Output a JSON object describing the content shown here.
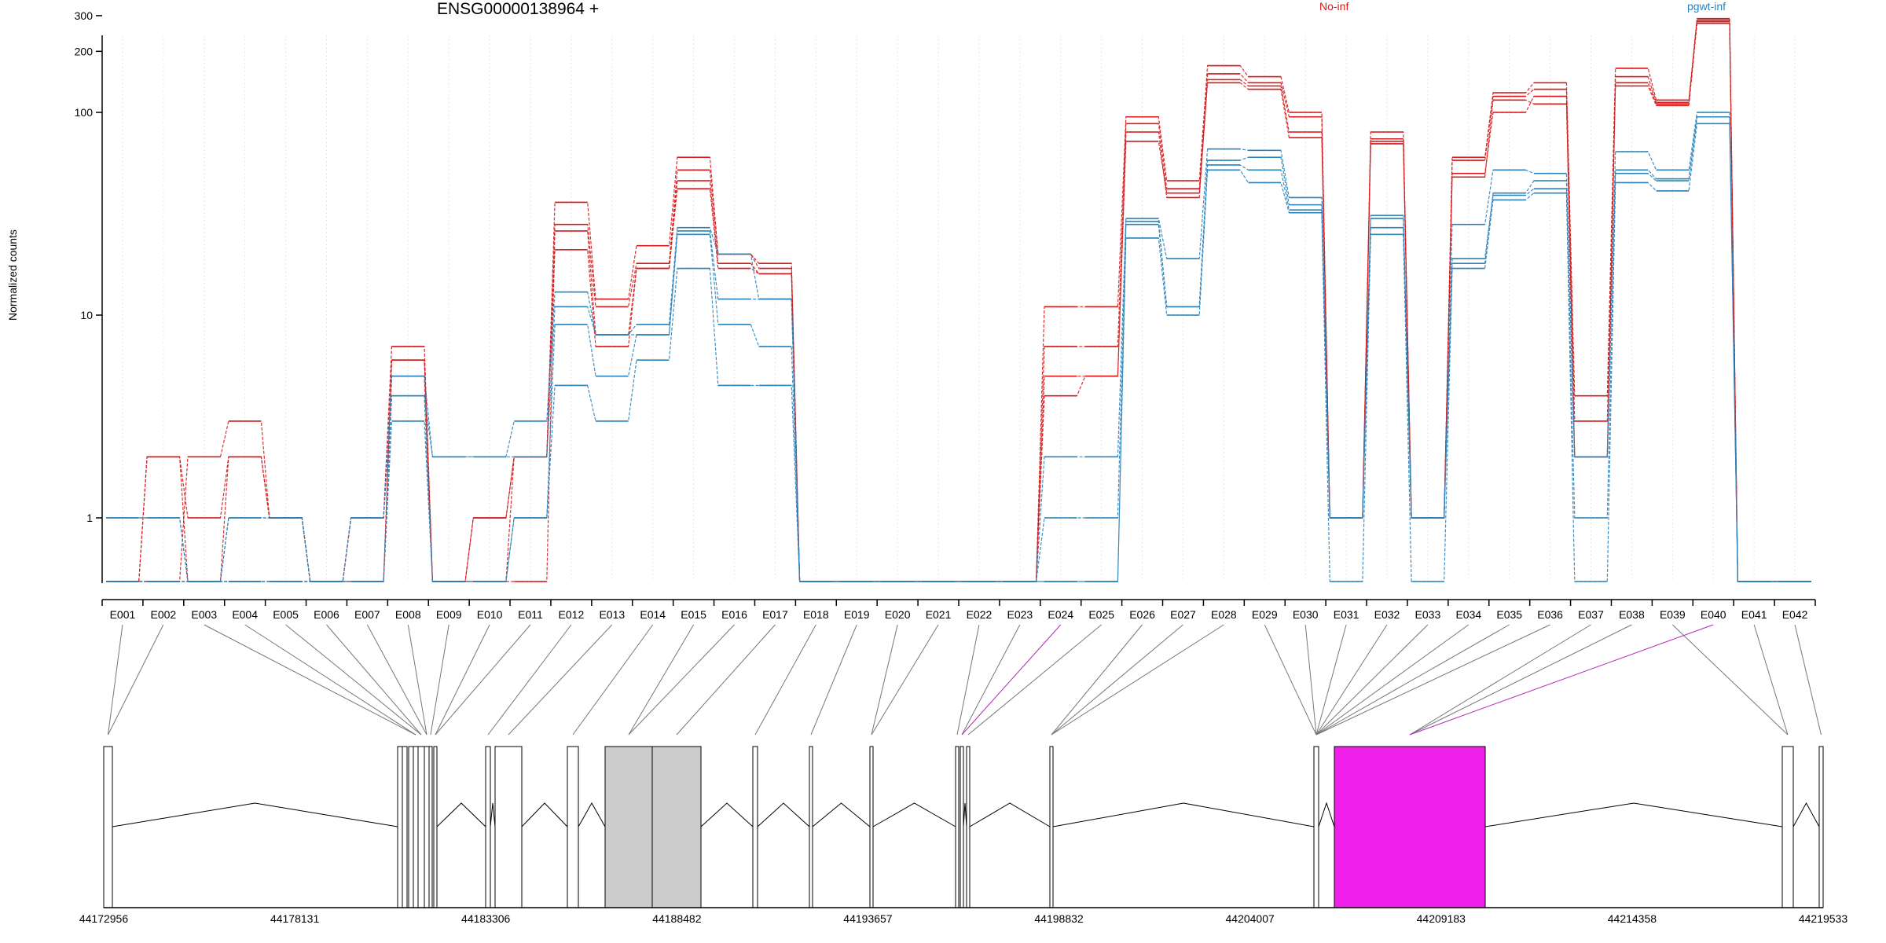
{
  "title": "ENSG00000138964 +",
  "ylabel": "Normalized counts",
  "chart_data": {
    "type": "line",
    "ylabel": "Normalized counts",
    "yscale": "log",
    "ylim": [
      0.5,
      400
    ],
    "yticks": [
      1,
      10,
      100,
      200,
      300
    ],
    "ytick_labels": [
      "1",
      "10",
      "100",
      "200",
      "300"
    ],
    "categories": [
      "E001",
      "E002",
      "E003",
      "E004",
      "E005",
      "E006",
      "E007",
      "E008",
      "E009",
      "E010",
      "E011",
      "E012",
      "E013",
      "E014",
      "E015",
      "E016",
      "E017",
      "E018",
      "E019",
      "E020",
      "E021",
      "E022",
      "E023",
      "E024",
      "E025",
      "E026",
      "E027",
      "E028",
      "E029",
      "E030",
      "E031",
      "E032",
      "E033",
      "E034",
      "E035",
      "E036",
      "E037",
      "E038",
      "E039",
      "E040",
      "E041",
      "E042"
    ],
    "legend": [
      "No-inf",
      "pgwt-inf"
    ],
    "colors": {
      "No-inf": "#d7191c",
      "pgwt-inf": "#2b83ba",
      "highlight": "#f01ee9",
      "intron_fill": "#cccccc"
    },
    "series": [
      {
        "group": "No-inf",
        "values": [
          0,
          2,
          0,
          2,
          1,
          0,
          1,
          7,
          0,
          1,
          2,
          36,
          12,
          22,
          60,
          20,
          18,
          0,
          0,
          0,
          0,
          0,
          0,
          11,
          11,
          95,
          46,
          170,
          150,
          100,
          1,
          80,
          1,
          60,
          125,
          140,
          4,
          165,
          115,
          290,
          0,
          0
        ]
      },
      {
        "group": "No-inf",
        "values": [
          0,
          0,
          2,
          3,
          1,
          0,
          1,
          6,
          0,
          1,
          2,
          28,
          11,
          18,
          52,
          20,
          17,
          0,
          0,
          0,
          0,
          0,
          0,
          7,
          7,
          88,
          42,
          155,
          140,
          95,
          1,
          74,
          1,
          58,
          120,
          130,
          3,
          150,
          112,
          280,
          0,
          0
        ]
      },
      {
        "group": "No-inf",
        "values": [
          0,
          2,
          1,
          2,
          1,
          0,
          0,
          6,
          0,
          0,
          0,
          26,
          8,
          17,
          46,
          18,
          16,
          0,
          0,
          0,
          0,
          0,
          0,
          5,
          5,
          80,
          38,
          145,
          135,
          80,
          1,
          70,
          1,
          50,
          100,
          120,
          2,
          140,
          110,
          285,
          0,
          0
        ]
      },
      {
        "group": "No-inf",
        "values": [
          0,
          0,
          0,
          0,
          0,
          0,
          0,
          5,
          0,
          0,
          2,
          21,
          7,
          17,
          42,
          17,
          16,
          0,
          0,
          0,
          0,
          0,
          0,
          4,
          5,
          72,
          40,
          140,
          130,
          75,
          1,
          72,
          1,
          48,
          115,
          110,
          2,
          135,
          108,
          275,
          0,
          0
        ]
      },
      {
        "group": "pgwt-inf",
        "values": [
          1,
          1,
          0,
          1,
          1,
          0,
          1,
          5,
          2,
          2,
          3,
          13,
          8,
          9,
          27,
          20,
          12,
          0,
          0,
          0,
          0,
          0,
          0,
          2,
          2,
          30,
          19,
          66,
          65,
          38,
          1,
          31,
          1,
          28,
          52,
          50,
          2,
          64,
          52,
          100,
          0,
          0
        ]
      },
      {
        "group": "pgwt-inf",
        "values": [
          1,
          1,
          0,
          1,
          1,
          0,
          1,
          4,
          2,
          2,
          2,
          11,
          8,
          8,
          26,
          12,
          12,
          0,
          0,
          0,
          0,
          0,
          0,
          1,
          1,
          29,
          11,
          58,
          60,
          35,
          1,
          30,
          1,
          19,
          40,
          46,
          2,
          52,
          47,
          95,
          0,
          0
        ]
      },
      {
        "group": "pgwt-inf",
        "values": [
          0,
          0,
          0,
          0,
          0,
          0,
          0,
          4,
          0,
          0,
          1,
          9,
          5,
          8,
          25,
          9,
          7,
          0,
          0,
          0,
          0,
          0,
          0,
          0,
          0,
          28,
          11,
          55,
          52,
          33,
          1,
          27,
          1,
          18,
          39,
          42,
          1,
          50,
          46,
          95,
          0,
          0
        ]
      },
      {
        "group": "pgwt-inf",
        "values": [
          0,
          0,
          0,
          0,
          0,
          0,
          0,
          3,
          0,
          0,
          1,
          4.5,
          3,
          6,
          17,
          4.5,
          4.5,
          0,
          0,
          0,
          0,
          0,
          0,
          0,
          0,
          24,
          10,
          52,
          45,
          32,
          0,
          25,
          0,
          17,
          37,
          40,
          0,
          45,
          41,
          88,
          0,
          0
        ]
      }
    ],
    "genomic_axis": {
      "ticks": [
        44172956,
        44178131,
        44183306,
        44188482,
        44193657,
        44198832,
        44204007,
        44209183,
        44214358,
        44219533
      ]
    }
  }
}
